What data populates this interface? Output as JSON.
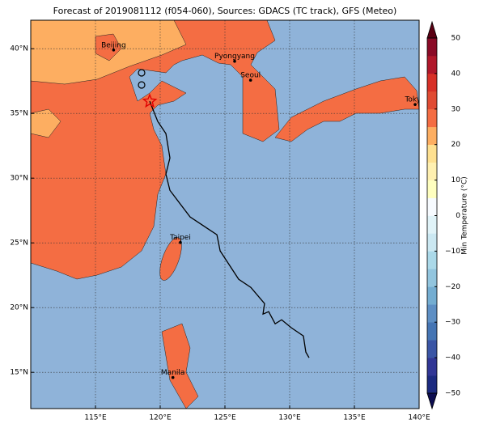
{
  "chart_data": {
    "type": "map",
    "title": "Forecast of 2019081112 (f054-060), Sources: GDACS (TC track), GFS (Meteo)",
    "xlim": [
      110,
      140
    ],
    "ylim": [
      12.2,
      42.2
    ],
    "xticks": [
      {
        "value": 115,
        "label": "115°E"
      },
      {
        "value": 120,
        "label": "120°E"
      },
      {
        "value": 125,
        "label": "125°E"
      },
      {
        "value": 130,
        "label": "130°E"
      },
      {
        "value": 135,
        "label": "135°E"
      },
      {
        "value": 140,
        "label": "140°E"
      }
    ],
    "yticks": [
      {
        "value": 15,
        "label": "15°N"
      },
      {
        "value": 20,
        "label": "20°N"
      },
      {
        "value": 25,
        "label": "25°N"
      },
      {
        "value": 30,
        "label": "30°N"
      },
      {
        "value": 35,
        "label": "35°N"
      },
      {
        "value": 40,
        "label": "40°N"
      }
    ],
    "grid": true,
    "ocean_color": "#8fb3d9",
    "land_colors": [
      "#f46d43",
      "#fdae61"
    ],
    "cities": [
      {
        "name": "Beijing",
        "lon": 116.4,
        "lat": 39.9
      },
      {
        "name": "Pyongyang",
        "lon": 125.75,
        "lat": 39.03
      },
      {
        "name": "Seoul",
        "lon": 126.98,
        "lat": 37.57
      },
      {
        "name": "Tokyo",
        "lon": 139.69,
        "lat": 35.69
      },
      {
        "name": "Taipei",
        "lon": 121.56,
        "lat": 25.03
      },
      {
        "name": "Manila",
        "lon": 120.98,
        "lat": 14.6
      }
    ],
    "track": {
      "color": "#000000",
      "lons": [
        119.19,
        119.81,
        120.44,
        120.75,
        120.44,
        120.75,
        122.31,
        124.38,
        124.63,
        126.06,
        127.0,
        128.06,
        127.94,
        128.38,
        128.88,
        129.38,
        130.13,
        131.06,
        131.25,
        131.5
      ],
      "lats": [
        35.94,
        34.38,
        33.44,
        31.56,
        30.31,
        29.06,
        27.0,
        25.63,
        24.38,
        22.19,
        21.56,
        20.31,
        19.5,
        19.69,
        18.75,
        19.06,
        18.44,
        17.81,
        16.56,
        16.13
      ]
    },
    "colorbar": {
      "label": "Min Temperature (°C)",
      "lim": [
        -50,
        50
      ],
      "ticks": [
        50,
        40,
        30,
        20,
        10,
        0,
        {
          "value": -10,
          "label": "−10"
        },
        {
          "value": -20,
          "label": "−20"
        },
        {
          "value": -30,
          "label": "−30"
        },
        {
          "value": -40,
          "label": "−40"
        },
        {
          "value": -50,
          "label": "−50"
        }
      ],
      "colors": [
        "#1c2a80",
        "#313695",
        "#3a55a5",
        "#4575b4",
        "#5e8fc4",
        "#74add1",
        "#92c5de",
        "#abd9e9",
        "#cbe8f2",
        "#e0f3f8",
        "#f7fbff",
        "#ffffbf",
        "#fff0b0",
        "#fee090",
        "#fdae61",
        "#f46d43",
        "#e04b33",
        "#d73027",
        "#b0172a",
        "#8a0a26"
      ],
      "under_color": "#0d0d50",
      "over_color": "#5a0013"
    }
  }
}
